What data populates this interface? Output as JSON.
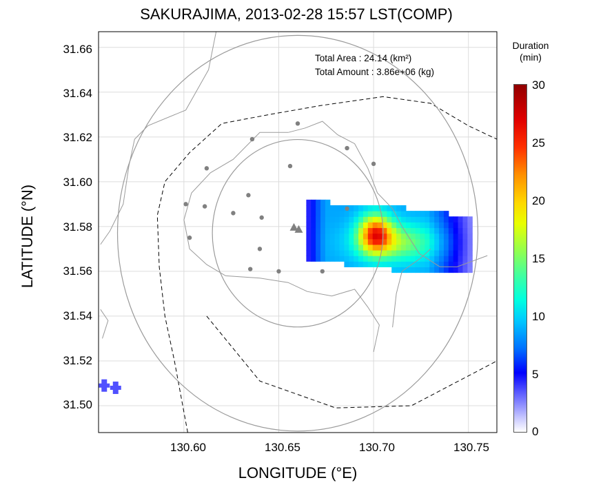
{
  "title": "SAKURAJIMA, 2013-02-28 15:57 LST(COMP)",
  "annotation": {
    "total_area": "Total Area   : 24.14 (km²)",
    "total_amount": "Total Amount : 3.86e+06 (kg)"
  },
  "axes": {
    "xlabel": "LONGITUDE (°E)",
    "ylabel": "LATITUDE (°N)",
    "xlim": [
      130.555,
      130.765
    ],
    "ylim": [
      31.488,
      31.667
    ],
    "xticks": [
      "130.60",
      "130.65",
      "130.70",
      "130.75"
    ],
    "yticks": [
      "31.50",
      "31.52",
      "31.54",
      "31.56",
      "31.58",
      "31.60",
      "31.62",
      "31.64",
      "31.66"
    ],
    "grid": true
  },
  "colorbar": {
    "title_line1": "Duration",
    "title_line2": "(min)",
    "ticks": [
      "0",
      "5",
      "10",
      "15",
      "20",
      "25",
      "30"
    ],
    "range": [
      0,
      30
    ]
  },
  "chart_data": {
    "type": "heatmap",
    "title": "SAKURAJIMA, 2013-02-28 15:57 LST(COMP)",
    "xlabel": "LONGITUDE (°E)",
    "ylabel": "LATITUDE (°N)",
    "value_label": "Duration (min)",
    "value_range": [
      0,
      30
    ],
    "summary": {
      "total_area_km2": 24.14,
      "total_amount_kg": 3860000.0
    },
    "vent_lon": 130.658,
    "vent_lat": 31.58,
    "radar_stations": [
      [
        130.66,
        31.626
      ],
      [
        130.636,
        31.619
      ],
      [
        130.686,
        31.615
      ],
      [
        130.656,
        31.607
      ],
      [
        130.612,
        31.606
      ],
      [
        130.7,
        31.608
      ],
      [
        130.601,
        31.59
      ],
      [
        130.611,
        31.589
      ],
      [
        130.634,
        31.594
      ],
      [
        130.626,
        31.586
      ],
      [
        130.641,
        31.584
      ],
      [
        130.686,
        31.588
      ],
      [
        130.603,
        31.575
      ],
      [
        130.64,
        31.57
      ],
      [
        130.635,
        31.561
      ],
      [
        130.65,
        31.56
      ],
      [
        130.673,
        31.56
      ]
    ],
    "circles": [
      {
        "lon": 130.66,
        "lat": 31.577,
        "radius_deg": 0.095
      },
      {
        "lon": 130.66,
        "lat": 31.577,
        "radius_deg": 0.045
      }
    ]
  },
  "colors": {
    "grid": "#dcdcdc",
    "coast": "#9a9a9a",
    "circle": "#9a9a9a",
    "station": "#808080"
  }
}
